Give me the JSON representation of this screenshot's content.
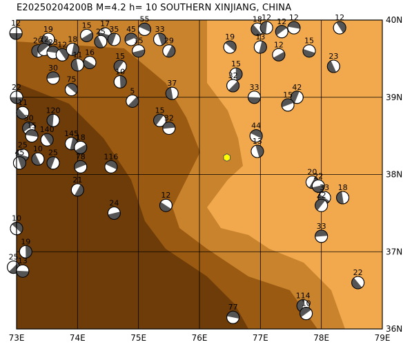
{
  "title": "E20250204200B M=4.2 h= 10 SOUTHERN XINJIANG, CHINA",
  "map": {
    "lon_range": [
      73,
      79
    ],
    "lat_range": [
      36,
      40
    ],
    "lon_ticks": [
      "73E",
      "74E",
      "75E",
      "76E",
      "77E",
      "78E",
      "79E"
    ],
    "lat_ticks": [
      "36N",
      "37N",
      "38N",
      "39N",
      "40N"
    ],
    "terrain_colors": {
      "plain": "#f2a94e",
      "mid": "#c9832d",
      "high": "#9a5a12",
      "peak": "#6e3c08"
    },
    "epicenter": {
      "lon": 76.45,
      "lat": 38.22,
      "color": "#ffff00",
      "shape": "hexagon"
    }
  },
  "mechanisms": [
    {
      "lon": 72.99,
      "lat": 39.83,
      "label": "12"
    },
    {
      "lon": 73.52,
      "lat": 39.75,
      "label": "19"
    },
    {
      "lon": 73.35,
      "lat": 39.6,
      "label": "20"
    },
    {
      "lon": 73.45,
      "lat": 39.62,
      "label": "22"
    },
    {
      "lon": 73.6,
      "lat": 39.58,
      "label": "23"
    },
    {
      "lon": 73.75,
      "lat": 39.55,
      "label": "12"
    },
    {
      "lon": 73.92,
      "lat": 39.62,
      "label": "18"
    },
    {
      "lon": 74.15,
      "lat": 39.8,
      "label": "15"
    },
    {
      "lon": 74.45,
      "lat": 39.82,
      "label": "17"
    },
    {
      "lon": 74.38,
      "lat": 39.72,
      "label": "25"
    },
    {
      "lon": 74.6,
      "lat": 39.75,
      "label": "35"
    },
    {
      "lon": 74.88,
      "lat": 39.75,
      "label": "45"
    },
    {
      "lon": 75.1,
      "lat": 39.88,
      "label": "55"
    },
    {
      "lon": 75.35,
      "lat": 39.75,
      "label": "33"
    },
    {
      "lon": 75.5,
      "lat": 39.6,
      "label": "29"
    },
    {
      "lon": 75.0,
      "lat": 39.6,
      "label": "15"
    },
    {
      "lon": 74.2,
      "lat": 39.45,
      "label": "16"
    },
    {
      "lon": 74.0,
      "lat": 39.42,
      "label": "11"
    },
    {
      "lon": 74.7,
      "lat": 39.4,
      "label": "15"
    },
    {
      "lon": 73.6,
      "lat": 39.25,
      "label": "30"
    },
    {
      "lon": 73.9,
      "lat": 39.1,
      "label": "75"
    },
    {
      "lon": 74.7,
      "lat": 39.2,
      "label": "10"
    },
    {
      "lon": 74.9,
      "lat": 38.95,
      "label": "5"
    },
    {
      "lon": 73.0,
      "lat": 39.0,
      "label": "22"
    },
    {
      "lon": 73.1,
      "lat": 38.8,
      "label": "11"
    },
    {
      "lon": 73.6,
      "lat": 38.7,
      "label": "120"
    },
    {
      "lon": 73.2,
      "lat": 38.6,
      "label": "30"
    },
    {
      "lon": 73.25,
      "lat": 38.5,
      "label": "15"
    },
    {
      "lon": 73.5,
      "lat": 38.45,
      "label": "140"
    },
    {
      "lon": 73.9,
      "lat": 38.4,
      "label": "145"
    },
    {
      "lon": 74.05,
      "lat": 38.35,
      "label": "18"
    },
    {
      "lon": 73.1,
      "lat": 38.25,
      "label": "25"
    },
    {
      "lon": 73.35,
      "lat": 38.2,
      "label": "10"
    },
    {
      "lon": 73.6,
      "lat": 38.15,
      "label": "25"
    },
    {
      "lon": 74.05,
      "lat": 38.1,
      "label": "78"
    },
    {
      "lon": 74.55,
      "lat": 38.1,
      "label": "116"
    },
    {
      "lon": 73.05,
      "lat": 38.15,
      "label": "45"
    },
    {
      "lon": 74.0,
      "lat": 37.8,
      "label": "21"
    },
    {
      "lon": 74.6,
      "lat": 37.5,
      "label": "24"
    },
    {
      "lon": 75.45,
      "lat": 37.6,
      "label": "12"
    },
    {
      "lon": 75.55,
      "lat": 39.05,
      "label": "37"
    },
    {
      "lon": 75.35,
      "lat": 38.7,
      "label": "15"
    },
    {
      "lon": 75.5,
      "lat": 38.6,
      "label": "32"
    },
    {
      "lon": 76.5,
      "lat": 39.65,
      "label": "19"
    },
    {
      "lon": 76.6,
      "lat": 39.3,
      "label": "15"
    },
    {
      "lon": 76.55,
      "lat": 39.15,
      "label": "32"
    },
    {
      "lon": 76.9,
      "lat": 39.0,
      "label": "33"
    },
    {
      "lon": 76.95,
      "lat": 39.88,
      "label": "18"
    },
    {
      "lon": 77.1,
      "lat": 39.9,
      "label": "12"
    },
    {
      "lon": 77.35,
      "lat": 39.85,
      "label": "12"
    },
    {
      "lon": 77.55,
      "lat": 39.9,
      "label": "12"
    },
    {
      "lon": 78.3,
      "lat": 39.9,
      "label": "12"
    },
    {
      "lon": 77.0,
      "lat": 39.65,
      "label": "13"
    },
    {
      "lon": 77.3,
      "lat": 39.55,
      "label": "12"
    },
    {
      "lon": 77.8,
      "lat": 39.6,
      "label": "15"
    },
    {
      "lon": 78.2,
      "lat": 39.4,
      "label": "23"
    },
    {
      "lon": 77.6,
      "lat": 39.0,
      "label": "42"
    },
    {
      "lon": 77.45,
      "lat": 38.9,
      "label": "15"
    },
    {
      "lon": 76.93,
      "lat": 38.5,
      "label": "44"
    },
    {
      "lon": 76.95,
      "lat": 38.3,
      "label": "13"
    },
    {
      "lon": 77.85,
      "lat": 37.9,
      "label": "20"
    },
    {
      "lon": 77.95,
      "lat": 37.85,
      "label": "22"
    },
    {
      "lon": 78.05,
      "lat": 37.7,
      "label": "33"
    },
    {
      "lon": 78.35,
      "lat": 37.7,
      "label": "18"
    },
    {
      "lon": 78.0,
      "lat": 37.6,
      "label": "22"
    },
    {
      "lon": 78.0,
      "lat": 37.2,
      "label": "33"
    },
    {
      "lon": 73.0,
      "lat": 37.3,
      "label": "10"
    },
    {
      "lon": 73.15,
      "lat": 37.0,
      "label": "19"
    },
    {
      "lon": 72.95,
      "lat": 36.8,
      "label": "25"
    },
    {
      "lon": 73.1,
      "lat": 36.75,
      "label": "13"
    },
    {
      "lon": 78.6,
      "lat": 36.6,
      "label": "22"
    },
    {
      "lon": 77.7,
      "lat": 36.3,
      "label": "114"
    },
    {
      "lon": 77.75,
      "lat": 36.2,
      "label": "10"
    },
    {
      "lon": 76.55,
      "lat": 36.15,
      "label": "77"
    }
  ]
}
